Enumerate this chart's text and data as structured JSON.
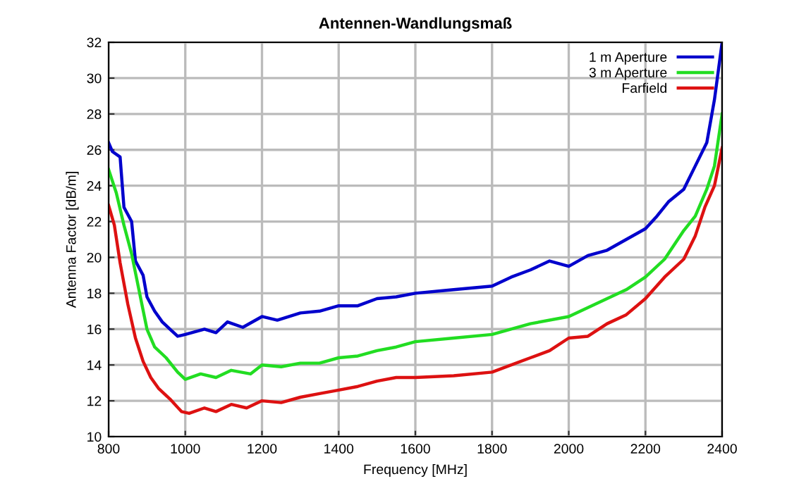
{
  "chart_data": {
    "type": "line",
    "title": "Antennen-Wandlungsmaß",
    "xlabel": "Frequency [MHz]",
    "ylabel": "Antenna Factor [dB/m]",
    "xlim": [
      800,
      2400
    ],
    "xticks": [
      800,
      1000,
      1200,
      1400,
      1600,
      1800,
      2000,
      2200,
      2400
    ],
    "ylim": [
      10,
      32
    ],
    "yticks": [
      10,
      12,
      14,
      16,
      18,
      20,
      22,
      24,
      26,
      28,
      30,
      32
    ],
    "grid": true,
    "legend": "top right",
    "marker": "none",
    "line_style": "solid",
    "series": [
      {
        "name": "1 m Aperture",
        "color": "#0000cc",
        "x": [
          800,
          810,
          830,
          840,
          860,
          870,
          890,
          900,
          920,
          940,
          960,
          980,
          1000,
          1050,
          1080,
          1110,
          1150,
          1200,
          1240,
          1300,
          1350,
          1400,
          1450,
          1500,
          1550,
          1600,
          1700,
          1800,
          1850,
          1900,
          1950,
          2000,
          2050,
          2100,
          2150,
          2200,
          2230,
          2260,
          2300,
          2330,
          2360,
          2380,
          2400
        ],
        "values": [
          26.4,
          25.9,
          25.6,
          22.8,
          22.0,
          19.8,
          19.0,
          17.8,
          17.0,
          16.4,
          16.0,
          15.6,
          15.7,
          16.0,
          15.8,
          16.4,
          16.1,
          16.7,
          16.5,
          16.9,
          17.0,
          17.3,
          17.3,
          17.7,
          17.8,
          18.0,
          18.2,
          18.4,
          18.9,
          19.3,
          19.8,
          19.5,
          20.1,
          20.4,
          21.0,
          21.6,
          22.3,
          23.1,
          23.8,
          25.1,
          26.4,
          28.8,
          32.0
        ]
      },
      {
        "name": "3 m Aperture",
        "color": "#22dd22",
        "x": [
          800,
          820,
          840,
          860,
          880,
          900,
          920,
          950,
          980,
          1000,
          1040,
          1080,
          1120,
          1170,
          1200,
          1250,
          1300,
          1350,
          1400,
          1450,
          1500,
          1550,
          1600,
          1700,
          1800,
          1900,
          2000,
          2050,
          2100,
          2150,
          2200,
          2250,
          2300,
          2330,
          2360,
          2380,
          2400
        ],
        "values": [
          24.9,
          23.6,
          21.8,
          20.2,
          18.1,
          16.0,
          15.0,
          14.4,
          13.6,
          13.2,
          13.5,
          13.3,
          13.7,
          13.5,
          14.0,
          13.9,
          14.1,
          14.1,
          14.4,
          14.5,
          14.8,
          15.0,
          15.3,
          15.5,
          15.7,
          16.3,
          16.7,
          17.2,
          17.7,
          18.2,
          18.9,
          19.9,
          21.5,
          22.3,
          23.8,
          25.1,
          28.0
        ]
      },
      {
        "name": "Farfield",
        "color": "#dd1111",
        "x": [
          800,
          815,
          830,
          850,
          870,
          890,
          910,
          930,
          960,
          990,
          1010,
          1050,
          1080,
          1120,
          1160,
          1200,
          1250,
          1300,
          1350,
          1400,
          1450,
          1500,
          1550,
          1600,
          1700,
          1800,
          1900,
          1950,
          2000,
          2050,
          2100,
          2150,
          2200,
          2250,
          2300,
          2330,
          2355,
          2380,
          2400
        ],
        "values": [
          22.9,
          21.8,
          19.7,
          17.4,
          15.5,
          14.2,
          13.3,
          12.7,
          12.1,
          11.4,
          11.3,
          11.6,
          11.4,
          11.8,
          11.6,
          12.0,
          11.9,
          12.2,
          12.4,
          12.6,
          12.8,
          13.1,
          13.3,
          13.3,
          13.4,
          13.6,
          14.4,
          14.8,
          15.5,
          15.6,
          16.3,
          16.8,
          17.7,
          18.9,
          19.9,
          21.2,
          22.8,
          24.0,
          26.1
        ]
      }
    ]
  }
}
